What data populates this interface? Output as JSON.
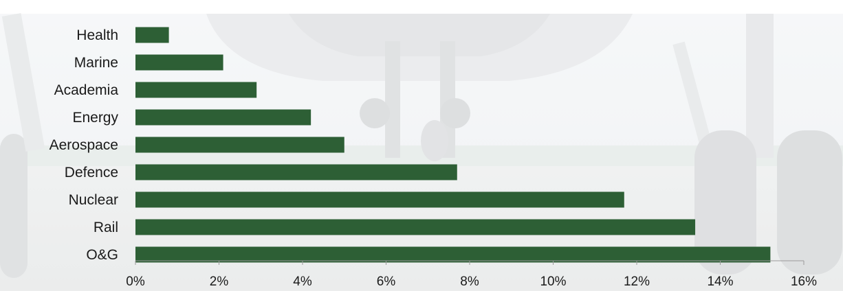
{
  "chart_data": {
    "type": "bar",
    "orientation": "horizontal",
    "categories": [
      "Health",
      "Marine",
      "Academia",
      "Energy",
      "Aerospace",
      "Defence",
      "Nuclear",
      "Rail",
      "O&G"
    ],
    "values": [
      0.8,
      2.1,
      2.9,
      4.2,
      5.0,
      7.7,
      11.7,
      13.4,
      15.2
    ],
    "value_unit": "%",
    "xlim": [
      0,
      16
    ],
    "x_ticks": [
      0,
      2,
      4,
      6,
      8,
      10,
      12,
      14,
      16
    ],
    "x_tick_labels": [
      "0%",
      "2%",
      "4%",
      "6%",
      "8%",
      "10%",
      "12%",
      "14%",
      "16%"
    ],
    "title": "",
    "xlabel": "",
    "ylabel": "",
    "grid": false,
    "legend": "none",
    "bar_color": "#2d5f35",
    "axis_color": "#9a9a9a",
    "background": "aircraft landing gear photo (faded)"
  }
}
